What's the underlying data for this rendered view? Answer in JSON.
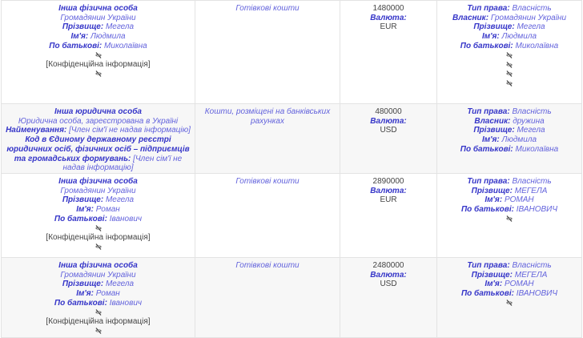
{
  "colors": {
    "label": "#3535c8",
    "value": "#6262dc",
    "text": "#444444",
    "row_alt": "#f7f7f7",
    "border": "#e3e3e3"
  },
  "rows": [
    {
      "person": [
        {
          "label": "Інша фізична особа"
        },
        {
          "value": "Громадянин України"
        },
        {
          "label": "Прізвище:",
          "value": "Мегела"
        },
        {
          "label": "Ім'я:",
          "value": "Людмила"
        },
        {
          "label": "По батькові:",
          "value": "Миколаївна"
        },
        {
          "icon": "eye-slash-icon"
        },
        {
          "plain": "[Конфіденційна інформація]"
        },
        {
          "icon": "eye-slash-icon"
        }
      ],
      "type": [
        {
          "value": "Готівкові кошти"
        }
      ],
      "amount": [
        {
          "plain": "1480000"
        },
        {
          "label": "Валюта:"
        },
        {
          "plain": "EUR"
        }
      ],
      "owner": [
        {
          "label": "Тип права:",
          "value": "Власність"
        },
        {
          "label": "Власник:",
          "value": "Громадянин України"
        },
        {
          "label": "Прізвище:",
          "value": "Мегела"
        },
        {
          "label": "Ім'я:",
          "value": "Людмила"
        },
        {
          "label": "По батькові:",
          "value": "Миколаївна"
        },
        {
          "icon": "eye-slash-icon"
        },
        {
          "icon": "eye-slash-icon"
        },
        {
          "icon": "eye-slash-icon"
        },
        {
          "icon": "eye-slash-icon"
        }
      ]
    },
    {
      "person": [
        {
          "label": "Інша юридична особа"
        },
        {
          "value": "Юридична особа, зареєстрована в Україні"
        },
        {
          "label": "Найменування:",
          "value": "[Член сім'ї не надав інформацію]"
        },
        {
          "label": "Код в Єдиному державному реєстрі юридичних осіб, фізичних осіб – підприємців та громадських формувань:",
          "value": "[Член сім'ї не надав інформацію]"
        }
      ],
      "type": [
        {
          "value": "Кошти, розміщені на банківських рахунках"
        }
      ],
      "amount": [
        {
          "plain": "480000"
        },
        {
          "label": "Валюта:"
        },
        {
          "plain": "USD"
        }
      ],
      "owner": [
        {
          "label": "Тип права:",
          "value": "Власність"
        },
        {
          "label": "Власник:",
          "value": "дружина"
        },
        {
          "label": "Прізвище:",
          "value": "Мегела"
        },
        {
          "label": "Ім'я:",
          "value": "Людмила"
        },
        {
          "label": "По батькові:",
          "value": "Миколаївна"
        }
      ]
    },
    {
      "person": [
        {
          "label": "Інша фізична особа"
        },
        {
          "value": "Громадянин України"
        },
        {
          "label": "Прізвище:",
          "value": "Мегела"
        },
        {
          "label": "Ім'я:",
          "value": "Роман"
        },
        {
          "label": "По батькові:",
          "value": "Іванович"
        },
        {
          "icon": "eye-slash-icon"
        },
        {
          "plain": "[Конфіденційна інформація]"
        },
        {
          "icon": "eye-slash-icon"
        }
      ],
      "type": [
        {
          "value": "Готівкові кошти"
        }
      ],
      "amount": [
        {
          "plain": "2890000"
        },
        {
          "label": "Валюта:"
        },
        {
          "plain": "EUR"
        }
      ],
      "owner": [
        {
          "label": "Тип права:",
          "value": "Власність"
        },
        {
          "label": "Прізвище:",
          "value": "МЕГЕЛА"
        },
        {
          "label": "Ім'я:",
          "value": "РОМАН"
        },
        {
          "label": "По батькові:",
          "value": "ІВАНОВИЧ"
        },
        {
          "icon": "eye-slash-icon"
        }
      ]
    },
    {
      "person": [
        {
          "label": "Інша фізична особа"
        },
        {
          "value": "Громадянин України"
        },
        {
          "label": "Прізвище:",
          "value": "Мегела"
        },
        {
          "label": "Ім'я:",
          "value": "Роман"
        },
        {
          "label": "По батькові:",
          "value": "Іванович"
        },
        {
          "icon": "eye-slash-icon"
        },
        {
          "plain": "[Конфіденційна інформація]"
        },
        {
          "icon": "eye-slash-icon"
        }
      ],
      "type": [
        {
          "value": "Готівкові кошти"
        }
      ],
      "amount": [
        {
          "plain": "2480000"
        },
        {
          "label": "Валюта:"
        },
        {
          "plain": "USD"
        }
      ],
      "owner": [
        {
          "label": "Тип права:",
          "value": "Власність"
        },
        {
          "label": "Прізвище:",
          "value": "МЕГЕЛА"
        },
        {
          "label": "Ім'я:",
          "value": "РОМАН"
        },
        {
          "label": "По батькові:",
          "value": "ІВАНОВИЧ"
        },
        {
          "icon": "eye-slash-icon"
        }
      ]
    }
  ]
}
